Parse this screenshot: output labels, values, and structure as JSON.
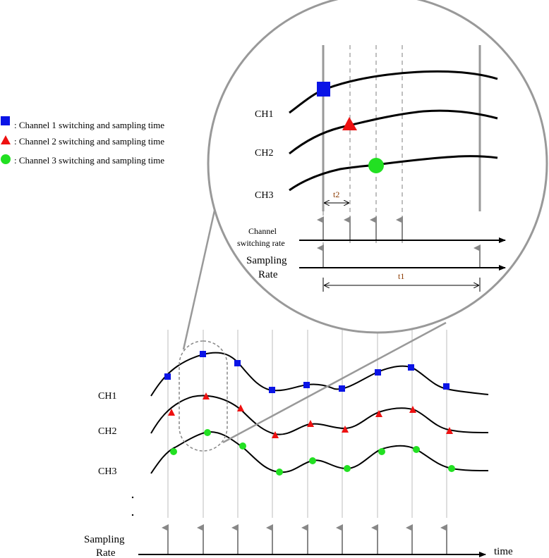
{
  "legend": {
    "items": [
      {
        "marker": "square",
        "color": "#0a14e6",
        "label": ": Channel 1 switching and sampling time"
      },
      {
        "marker": "triangle",
        "color": "#ee1111",
        "label": ": Channel 2 switching and sampling time"
      },
      {
        "marker": "circle",
        "color": "#22e022",
        "label": ": Channel 3 switching and sampling time"
      }
    ]
  },
  "zoom": {
    "channels": [
      "CH1",
      "CH2",
      "CH3"
    ],
    "channel_switching_label_line1": "Channel",
    "channel_switching_label_line2": "switching rate",
    "sampling_label_line1": "Sampling",
    "sampling_label_line2": "Rate",
    "t1_label": "t1",
    "t2_label": "t2"
  },
  "main": {
    "channels": [
      "CH1",
      "CH2",
      "CH3"
    ],
    "ellipsis": ". .",
    "sampling_label_line1": "Sampling",
    "sampling_label_line2": "Rate",
    "time_label": "time"
  },
  "colors": {
    "ch1": "#0a14e6",
    "ch2": "#ee1111",
    "ch3": "#22e022",
    "gray": "#999999",
    "dashed": "#aaaaaa"
  }
}
